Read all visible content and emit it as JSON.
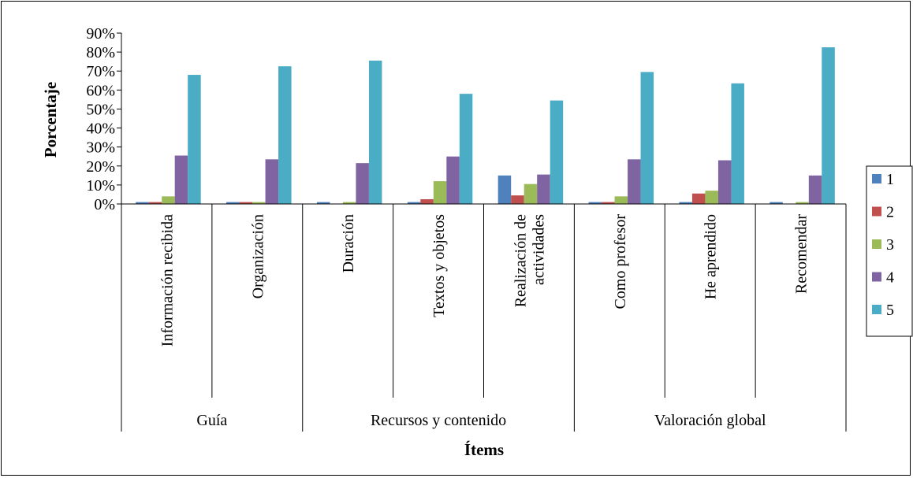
{
  "chart_data": {
    "type": "bar",
    "title": "",
    "xlabel": "Ítems",
    "ylabel": "Porcentaje",
    "ylim": [
      0,
      90
    ],
    "yticks": [
      "0%",
      "10%",
      "20%",
      "30%",
      "40%",
      "50%",
      "60%",
      "70%",
      "80%",
      "90%"
    ],
    "groups": [
      {
        "label": "Guía",
        "span": 2
      },
      {
        "label": "Recursos y contenido",
        "span": 3
      },
      {
        "label": "Valoración global",
        "span": 3
      }
    ],
    "categories": [
      [
        "Información recibida"
      ],
      [
        "Organización"
      ],
      [
        "Duración"
      ],
      [
        "Textos y objetos"
      ],
      [
        "Realización de",
        "actividades"
      ],
      [
        "Como profesor"
      ],
      [
        "He aprendido"
      ],
      [
        "Recomendar"
      ]
    ],
    "series": [
      {
        "name": "1",
        "color": "#4F81BD",
        "values": [
          1,
          1,
          1,
          1,
          15,
          1,
          1,
          1
        ]
      },
      {
        "name": "2",
        "color": "#C0504D",
        "values": [
          1,
          1,
          0,
          2.5,
          4.5,
          1,
          5.5,
          0
        ]
      },
      {
        "name": "3",
        "color": "#9BBB59",
        "values": [
          4,
          1,
          1,
          12,
          10.5,
          4,
          7,
          1
        ]
      },
      {
        "name": "4",
        "color": "#8064A2",
        "values": [
          25.5,
          23.5,
          21.5,
          25,
          15.5,
          23.5,
          23,
          15
        ]
      },
      {
        "name": "5",
        "color": "#4BACC6",
        "values": [
          68,
          72.5,
          75.5,
          58,
          54.5,
          69.5,
          63.5,
          82.5
        ]
      }
    ],
    "legend_position": "right",
    "grid": false
  }
}
